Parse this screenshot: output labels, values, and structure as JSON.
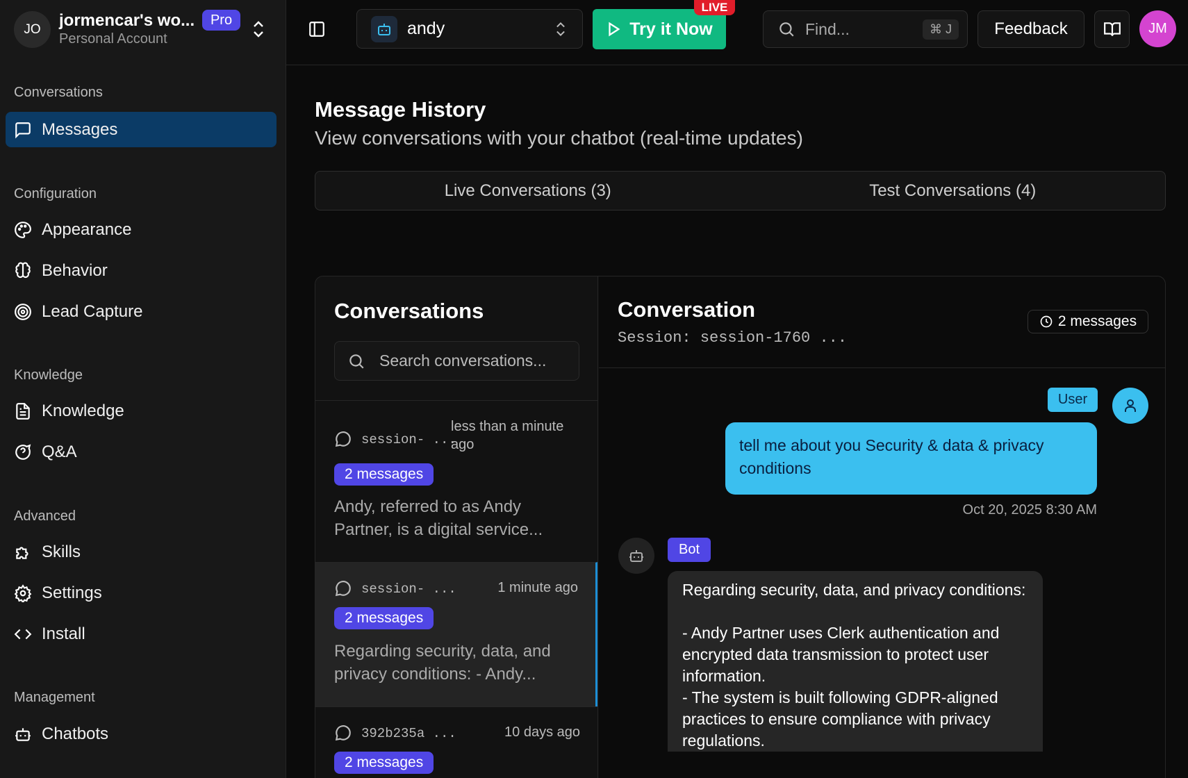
{
  "workspace": {
    "initials": "JO",
    "name": "jormencar's wo...",
    "plan": "Pro",
    "account": "Personal Account"
  },
  "sidebar": {
    "sections": [
      {
        "label": "Conversations",
        "items": [
          {
            "label": "Messages",
            "icon": "message-square-icon",
            "active": true
          }
        ]
      },
      {
        "label": "Configuration",
        "items": [
          {
            "label": "Appearance",
            "icon": "palette-icon"
          },
          {
            "label": "Behavior",
            "icon": "brain-icon"
          },
          {
            "label": "Lead Capture",
            "icon": "target-icon"
          }
        ]
      },
      {
        "label": "Knowledge",
        "items": [
          {
            "label": "Knowledge",
            "icon": "file-text-icon"
          },
          {
            "label": "Q&A",
            "icon": "help-circle-icon"
          }
        ]
      },
      {
        "label": "Advanced",
        "items": [
          {
            "label": "Skills",
            "icon": "puzzle-icon"
          },
          {
            "label": "Settings",
            "icon": "gear-icon"
          },
          {
            "label": "Install",
            "icon": "code-icon"
          }
        ]
      },
      {
        "label": "Management",
        "items": [
          {
            "label": "Chatbots",
            "icon": "bot-icon"
          }
        ]
      }
    ]
  },
  "header": {
    "bot_name": "andy",
    "try_label": "Try it Now",
    "live_badge": "LIVE",
    "find_placeholder": "Find...",
    "find_shortcut": "⌘ J",
    "feedback_label": "Feedback",
    "user_initials": "JM",
    "accent": "#10b981"
  },
  "page": {
    "title": "Message History",
    "subtitle": "View conversations with your chatbot (real-time updates)",
    "tabs": [
      {
        "label": "Live Conversations (3)"
      },
      {
        "label": "Test Conversations (4)"
      }
    ]
  },
  "list": {
    "title": "Conversations",
    "search_placeholder": "Search conversations...",
    "items": [
      {
        "session": "session- ...",
        "time": "less than a minute ago",
        "count": "2 messages",
        "preview": "Andy, referred to as Andy Partner, is a digital service..."
      },
      {
        "session": "session- ...",
        "time": "1 minute ago",
        "count": "2 messages",
        "preview": "Regarding security, data, and privacy conditions: - Andy...",
        "selected": true
      },
      {
        "session": "392b235a ...",
        "time": "10 days ago",
        "count": "2 messages"
      }
    ]
  },
  "conversation": {
    "title": "Conversation",
    "session": "Session: session-1760 ...",
    "count": "2 messages",
    "user": {
      "label": "User",
      "text": "tell me about you Security & data & privacy conditions",
      "time": "Oct 20, 2025 8:30 AM",
      "color": "#3bbfef"
    },
    "bot": {
      "label": "Bot",
      "lines": [
        "Regarding security, data, and privacy conditions:",
        "",
        "- Andy Partner uses Clerk authentication and encrypted data transmission to protect user information.",
        "- The system is built following GDPR-aligned practices to ensure compliance with privacy regulations."
      ]
    }
  }
}
